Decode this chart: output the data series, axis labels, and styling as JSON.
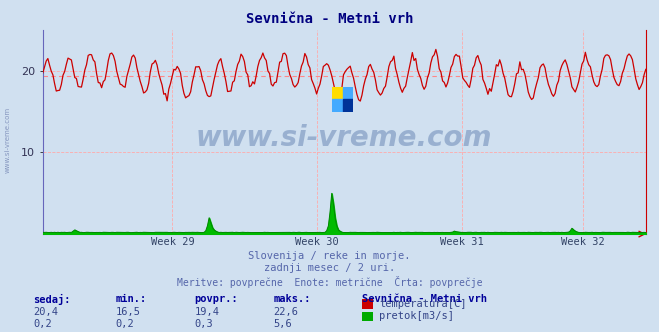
{
  "title": "Sevnična - Metni vrh",
  "title_color": "#000080",
  "bg_color": "#d0e0f0",
  "plot_bg_color": "#d0e0f0",
  "grid_color": "#ffaaaa",
  "grid_color_v": "#ccccff",
  "x_tick_labels": [
    "Week 29",
    "Week 30",
    "Week 31",
    "Week 32"
  ],
  "x_tick_positions": [
    0.215,
    0.455,
    0.695,
    0.895
  ],
  "y_ticks": [
    10,
    20
  ],
  "y_min": 0,
  "y_max": 25,
  "temp_color": "#cc0000",
  "temp_avg_color": "#ff8888",
  "flow_color": "#008800",
  "flow_fill_color": "#00bb00",
  "flow_base_color": "#8888ff",
  "temp_avg": 19.4,
  "subtitle1": "Slovenija / reke in morje.",
  "subtitle2": "zadnji mesec / 2 uri.",
  "subtitle3": "Meritve: povprečne  Enote: metrične  Črta: povprečje",
  "subtitle_color": "#5566aa",
  "legend_title": "Sevnična - Metni vrh",
  "legend_items": [
    "temperatura[C]",
    "pretok[m3/s]"
  ],
  "legend_colors": [
    "#cc0000",
    "#00aa00"
  ],
  "table_headers": [
    "sedaj:",
    "min.:",
    "povpr.:",
    "maks.:"
  ],
  "table_header_color": "#000099",
  "table_value_color": "#334488",
  "table_values_temp": [
    "20,4",
    "16,5",
    "19,4",
    "22,6"
  ],
  "table_values_flow": [
    "0,2",
    "0,2",
    "0,3",
    "5,6"
  ],
  "n_points": 360,
  "watermark": "www.si-vreme.com",
  "watermark_color": "#1a4488",
  "left_label_color": "#6677aa",
  "spine_color": "#6666bb",
  "axis_color": "#cc0000"
}
